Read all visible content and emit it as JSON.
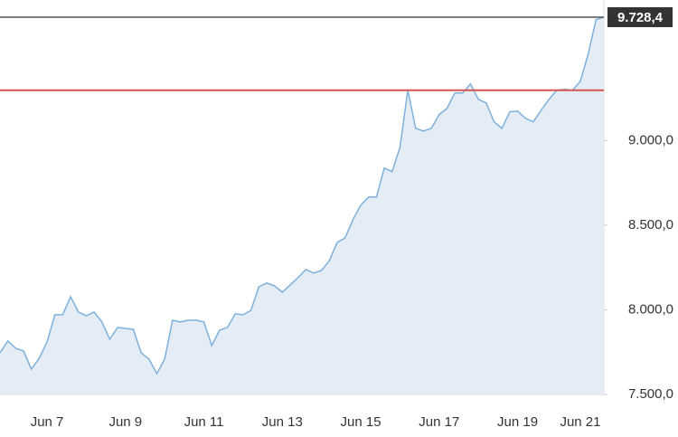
{
  "chart_data": {
    "type": "area",
    "categories": [
      null,
      null,
      null,
      null,
      null,
      null,
      "Jun 7",
      null,
      null,
      null,
      null,
      null,
      null,
      null,
      null,
      null,
      "Jun 9",
      null,
      null,
      null,
      null,
      null,
      null,
      null,
      null,
      null,
      "Jun 11",
      null,
      null,
      null,
      null,
      null,
      null,
      null,
      null,
      null,
      "Jun 13",
      null,
      null,
      null,
      null,
      null,
      null,
      null,
      null,
      null,
      "Jun 15",
      null,
      null,
      null,
      null,
      null,
      null,
      null,
      null,
      null,
      "Jun 17",
      null,
      null,
      null,
      null,
      null,
      null,
      null,
      null,
      null,
      "Jun 19",
      null,
      null,
      null,
      null,
      null,
      null,
      null,
      "Jun 21",
      null,
      null,
      null
    ],
    "values": [
      7746,
      7816,
      7773,
      7757,
      7650,
      7714,
      7810,
      7971,
      7971,
      8078,
      7987,
      7965,
      7987,
      7928,
      7826,
      7896,
      7890,
      7885,
      7746,
      7709,
      7623,
      7709,
      7939,
      7928,
      7939,
      7939,
      7928,
      7789,
      7880,
      7896,
      7976,
      7971,
      7997,
      8136,
      8158,
      8142,
      8104,
      8147,
      8190,
      8238,
      8217,
      8233,
      8291,
      8398,
      8425,
      8532,
      8618,
      8666,
      8666,
      8837,
      8816,
      8960,
      9297,
      9072,
      9056,
      9072,
      9153,
      9190,
      9281,
      9281,
      9334,
      9243,
      9222,
      9110,
      9072,
      9169,
      9174,
      9131,
      9110,
      9179,
      9243,
      9297,
      9302,
      9297,
      9350,
      9511,
      9714,
      9728.4
    ],
    "color": "#7eb0dc",
    "fill": "#e4edf6",
    "ylim": [
      7500,
      9830
    ],
    "yticks": [
      {
        "value": 7500,
        "label": "7.500,0"
      },
      {
        "value": 8000,
        "label": "8.000,0"
      },
      {
        "value": 8500,
        "label": "8.500,0"
      },
      {
        "value": 9000,
        "label": "9.000,0"
      }
    ],
    "reference_line": {
      "value": 9297,
      "color": "#d9534f"
    },
    "last_value": {
      "value": 9728.4,
      "label": "9.728,4",
      "color": "#555555"
    }
  }
}
